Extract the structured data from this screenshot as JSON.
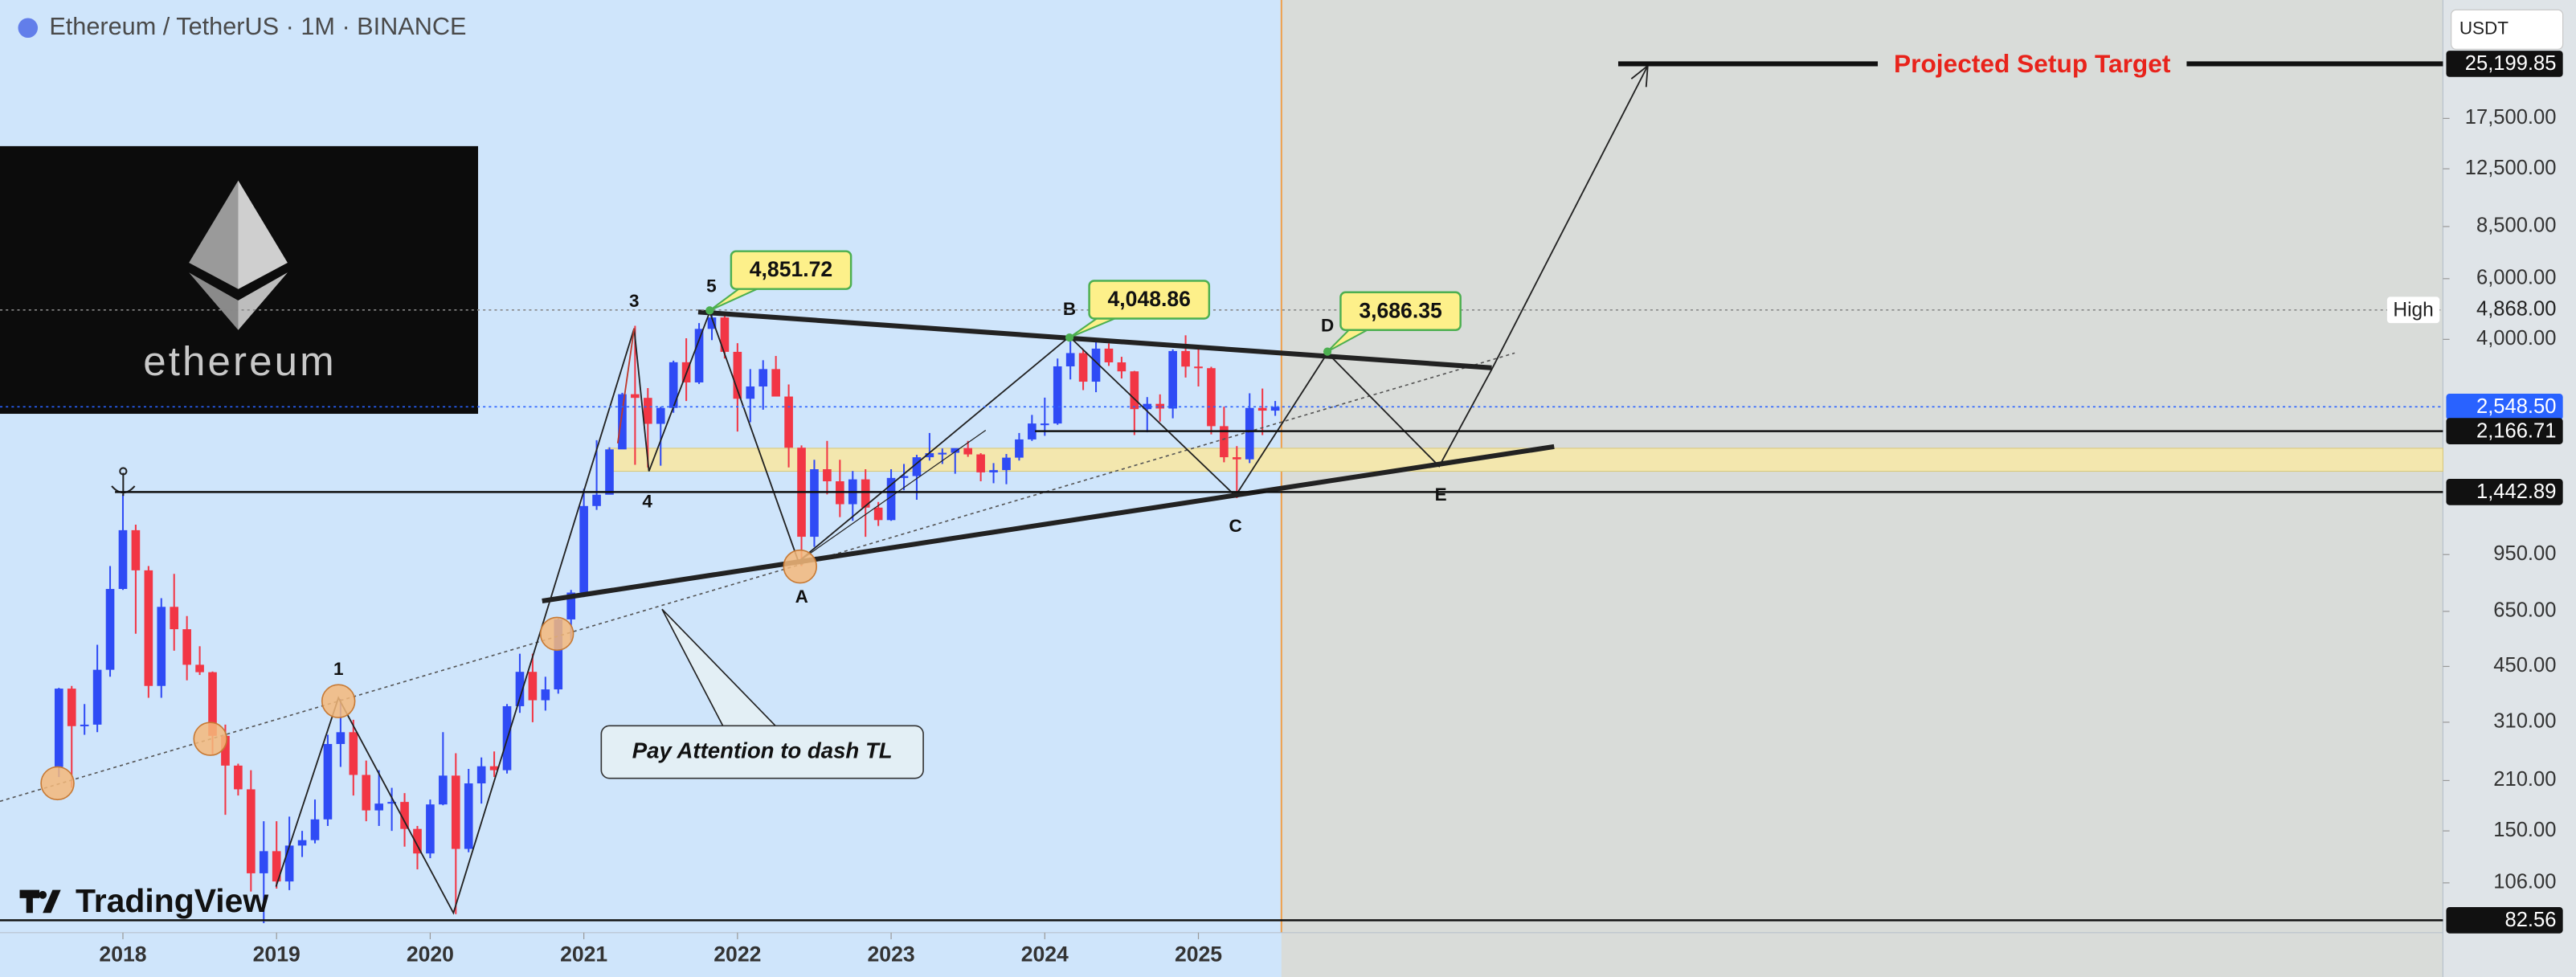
{
  "chart_data": {
    "type": "candlestick",
    "title": "Ethereum / TetherUS · 1M · BINANCE",
    "currency": "USDT",
    "brand": "TradingView",
    "logo": "ethereum",
    "log_scale": true,
    "up_color": "#2f4bf5",
    "down_color": "#f23645",
    "xlim": [
      2017.2,
      2033.1
    ],
    "xticks": [
      2018,
      2019,
      2020,
      2021,
      2022,
      2023,
      2024,
      2025
    ],
    "ylim": [
      76,
      38600
    ],
    "yticks": [
      {
        "value": 106,
        "label": "106.00"
      },
      {
        "value": 150,
        "label": "150.00"
      },
      {
        "value": 210,
        "label": "210.00"
      },
      {
        "value": 310,
        "label": "310.00"
      },
      {
        "value": 450,
        "label": "450.00"
      },
      {
        "value": 650,
        "label": "650.00"
      },
      {
        "value": 950,
        "label": "950.00"
      },
      {
        "value": 4000,
        "label": "4,000.00"
      },
      {
        "value": 6000,
        "label": "6,000.00"
      },
      {
        "value": 8500,
        "label": "8,500.00"
      },
      {
        "value": 12500,
        "label": "12,500.00"
      },
      {
        "value": 17500,
        "label": "17,500.00"
      }
    ],
    "price_lines": [
      {
        "value": 25199.85,
        "label": "25,199.85",
        "color": "#111111",
        "style": "solid"
      },
      {
        "value": 4868,
        "label": "4,868.00",
        "tag": "High",
        "color": "#888888",
        "style": "dotted"
      },
      {
        "value": 2548.5,
        "label": "2,548.50",
        "color": "#2962ff",
        "style": "dotted"
      },
      {
        "value": 2166.71,
        "label": "2,166.71",
        "color": "#111111",
        "style": "solid"
      },
      {
        "value": 1442.89,
        "label": "1,442.89",
        "color": "#111111",
        "style": "solid"
      },
      {
        "value": 82.56,
        "label": "82.56",
        "color": "#111111",
        "style": "solid"
      }
    ],
    "callouts": [
      {
        "value": 4851.72,
        "label": "4,851.72"
      },
      {
        "value": 4048.86,
        "label": "4,048.86"
      },
      {
        "value": 3686.35,
        "label": "3,686.35"
      }
    ],
    "wave_labels": [
      "1",
      "3",
      "4",
      "5",
      "A",
      "B",
      "C",
      "D",
      "E"
    ],
    "annotations": {
      "target": "Projected Setup Target",
      "note": "Pay Attention to dash TL"
    },
    "x": [
      "2017-08",
      "2017-09",
      "2017-10",
      "2017-11",
      "2017-12",
      "2018-01",
      "2018-02",
      "2018-03",
      "2018-04",
      "2018-05",
      "2018-06",
      "2018-07",
      "2018-08",
      "2018-09",
      "2018-10",
      "2018-11",
      "2018-12",
      "2019-01",
      "2019-02",
      "2019-03",
      "2019-04",
      "2019-05",
      "2019-06",
      "2019-07",
      "2019-08",
      "2019-09",
      "2019-10",
      "2019-11",
      "2019-12",
      "2020-01",
      "2020-02",
      "2020-03",
      "2020-04",
      "2020-05",
      "2020-06",
      "2020-07",
      "2020-08",
      "2020-09",
      "2020-10",
      "2020-11",
      "2020-12",
      "2021-01",
      "2021-02",
      "2021-03",
      "2021-04",
      "2021-05",
      "2021-06",
      "2021-07",
      "2021-08",
      "2021-09",
      "2021-10",
      "2021-11",
      "2021-12",
      "2022-01",
      "2022-02",
      "2022-03",
      "2022-04",
      "2022-05",
      "2022-06",
      "2022-07",
      "2022-08",
      "2022-09",
      "2022-10",
      "2022-11",
      "2022-12",
      "2023-01",
      "2023-02",
      "2023-03",
      "2023-04",
      "2023-05",
      "2023-06",
      "2023-07",
      "2023-08",
      "2023-09",
      "2023-10",
      "2023-11",
      "2023-12",
      "2024-01",
      "2024-02",
      "2024-03",
      "2024-04",
      "2024-05",
      "2024-06",
      "2024-07",
      "2024-08",
      "2024-09",
      "2024-10",
      "2024-11",
      "2024-12",
      "2025-01",
      "2025-02",
      "2025-03",
      "2025-04",
      "2025-05",
      "2025-06",
      "2025-07"
    ],
    "ohlc": [
      [
        230,
        390,
        215,
        388
      ],
      [
        388,
        395,
        200,
        302
      ],
      [
        302,
        350,
        285,
        305
      ],
      [
        305,
        520,
        290,
        440
      ],
      [
        440,
        880,
        420,
        755
      ],
      [
        755,
        1420,
        750,
        1118
      ],
      [
        1118,
        1160,
        560,
        855
      ],
      [
        855,
        880,
        365,
        395
      ],
      [
        395,
        710,
        365,
        670
      ],
      [
        670,
        835,
        500,
        577
      ],
      [
        577,
        630,
        410,
        455
      ],
      [
        455,
        515,
        425,
        433
      ],
      [
        433,
        435,
        250,
        283
      ],
      [
        283,
        305,
        167,
        232
      ],
      [
        232,
        235,
        190,
        198
      ],
      [
        198,
        225,
        100,
        113
      ],
      [
        113,
        160,
        81,
        131
      ],
      [
        131,
        160,
        102,
        107
      ],
      [
        107,
        165,
        101,
        136
      ],
      [
        136,
        150,
        126,
        141
      ],
      [
        141,
        185,
        138,
        162
      ],
      [
        162,
        285,
        155,
        268
      ],
      [
        268,
        362,
        230,
        290
      ],
      [
        290,
        315,
        190,
        218
      ],
      [
        218,
        240,
        160,
        172
      ],
      [
        172,
        225,
        155,
        180
      ],
      [
        180,
        200,
        150,
        182
      ],
      [
        182,
        193,
        135,
        152
      ],
      [
        152,
        155,
        116,
        129
      ],
      [
        129,
        185,
        125,
        179
      ],
      [
        179,
        290,
        178,
        217
      ],
      [
        217,
        252,
        86,
        133
      ],
      [
        133,
        227,
        130,
        206
      ],
      [
        206,
        245,
        180,
        231
      ],
      [
        231,
        255,
        215,
        225
      ],
      [
        225,
        350,
        220,
        345
      ],
      [
        345,
        490,
        330,
        434
      ],
      [
        434,
        490,
        310,
        359
      ],
      [
        359,
        420,
        335,
        386
      ],
      [
        386,
        620,
        375,
        616
      ],
      [
        616,
        750,
        535,
        737
      ],
      [
        737,
        1475,
        715,
        1314
      ],
      [
        1314,
        2040,
        1280,
        1417
      ],
      [
        1417,
        1945,
        1420,
        1918
      ],
      [
        1918,
        2800,
        1930,
        2773
      ],
      [
        2773,
        4380,
        1730,
        2706
      ],
      [
        2706,
        2890,
        1700,
        2275
      ],
      [
        2275,
        2550,
        1720,
        2530
      ],
      [
        2530,
        3470,
        2450,
        3433
      ],
      [
        3433,
        4030,
        2650,
        3000
      ],
      [
        3000,
        4460,
        2970,
        4290
      ],
      [
        4290,
        4868,
        3980,
        4630
      ],
      [
        4630,
        4780,
        3520,
        3680
      ],
      [
        3680,
        3900,
        2160,
        2690
      ],
      [
        2690,
        3280,
        2300,
        2920
      ],
      [
        2920,
        3480,
        2500,
        3280
      ],
      [
        3280,
        3580,
        2780,
        2730
      ],
      [
        2730,
        2960,
        1700,
        1940
      ],
      [
        1940,
        1970,
        880,
        1070
      ],
      [
        1070,
        1790,
        1000,
        1680
      ],
      [
        1680,
        2030,
        1420,
        1550
      ],
      [
        1550,
        1790,
        1220,
        1330
      ],
      [
        1330,
        1660,
        1190,
        1570
      ],
      [
        1570,
        1680,
        1070,
        1300
      ],
      [
        1300,
        1350,
        1150,
        1196
      ],
      [
        1196,
        1680,
        1190,
        1585
      ],
      [
        1585,
        1740,
        1460,
        1605
      ],
      [
        1605,
        1850,
        1370,
        1820
      ],
      [
        1820,
        2140,
        1780,
        1870
      ],
      [
        1870,
        1930,
        1740,
        1875
      ],
      [
        1875,
        1930,
        1630,
        1935
      ],
      [
        1935,
        2030,
        1825,
        1855
      ],
      [
        1855,
        1870,
        1550,
        1645
      ],
      [
        1645,
        1750,
        1530,
        1670
      ],
      [
        1670,
        1860,
        1520,
        1815
      ],
      [
        1815,
        2140,
        1780,
        2050
      ],
      [
        2050,
        2415,
        2030,
        2280
      ],
      [
        2280,
        2710,
        2100,
        2280
      ],
      [
        2280,
        3520,
        2260,
        3340
      ],
      [
        3340,
        4090,
        3060,
        3650
      ],
      [
        3650,
        3730,
        2850,
        3015
      ],
      [
        3015,
        3980,
        2810,
        3760
      ],
      [
        3760,
        3890,
        3350,
        3430
      ],
      [
        3430,
        3560,
        3080,
        3230
      ],
      [
        3230,
        3240,
        2110,
        2510
      ],
      [
        2510,
        2720,
        2150,
        2600
      ],
      [
        2600,
        2770,
        2310,
        2520
      ],
      [
        2520,
        3740,
        2360,
        3700
      ],
      [
        3700,
        4110,
        3100,
        3335
      ],
      [
        3335,
        3745,
        2920,
        3300
      ],
      [
        3300,
        3330,
        2120,
        2240
      ],
      [
        2240,
        2550,
        1760,
        1820
      ],
      [
        1820,
        1960,
        1385,
        1795
      ],
      [
        1795,
        2790,
        1750,
        2530
      ],
      [
        2530,
        2880,
        2110,
        2485
      ],
      [
        2485,
        2650,
        2400,
        2548.5
      ]
    ]
  }
}
